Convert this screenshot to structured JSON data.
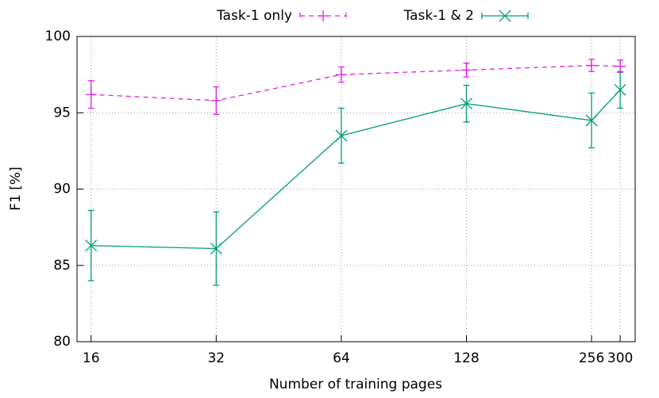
{
  "chart_data": {
    "type": "line",
    "xlabel": "Number of training pages",
    "ylabel": "F1 [%]",
    "x": [
      16,
      32,
      64,
      128,
      256,
      300
    ],
    "xscale": "log",
    "xlim": [
      14.8,
      326
    ],
    "xticks": [
      16,
      32,
      64,
      128,
      256,
      300
    ],
    "ylim": [
      80,
      100
    ],
    "yticks": [
      80,
      85,
      90,
      95,
      100
    ],
    "grid": true,
    "series": [
      {
        "name": "Task-1 only",
        "color": "#e020e0",
        "marker": "plus",
        "dash": true,
        "values": [
          96.2,
          95.8,
          97.5,
          97.8,
          98.1,
          98.05
        ],
        "errors": [
          0.9,
          0.9,
          0.5,
          0.45,
          0.4,
          0.4
        ]
      },
      {
        "name": "Task-1 & 2",
        "color": "#009e73",
        "marker": "cross",
        "dash": false,
        "values": [
          86.3,
          86.1,
          93.5,
          95.6,
          94.5,
          96.5
        ],
        "errors": [
          2.3,
          2.4,
          1.8,
          1.2,
          1.8,
          1.2
        ]
      }
    ]
  }
}
